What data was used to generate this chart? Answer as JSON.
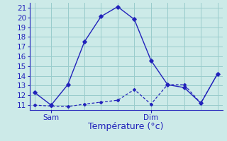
{
  "line1_x": [
    0,
    1,
    2,
    3,
    4,
    5,
    6,
    7,
    8,
    9,
    10,
    11
  ],
  "line1_y": [
    12.3,
    11.0,
    13.1,
    17.5,
    20.1,
    21.1,
    19.8,
    15.6,
    13.1,
    12.8,
    11.2,
    14.2
  ],
  "line2_x": [
    0,
    1,
    2,
    3,
    4,
    5,
    6,
    7,
    8,
    9,
    10,
    11
  ],
  "line2_y": [
    11.0,
    10.9,
    10.85,
    11.1,
    11.3,
    11.5,
    12.6,
    11.1,
    13.1,
    13.1,
    11.2,
    14.2
  ],
  "line_color": "#2222bb",
  "bg_color": "#cceae8",
  "grid_color": "#99cccc",
  "axis_color": "#2222bb",
  "xlabel": "Température (°c)",
  "xlabel_fontsize": 9,
  "yticks": [
    11,
    12,
    13,
    14,
    15,
    16,
    17,
    18,
    19,
    20,
    21
  ],
  "ylim": [
    10.5,
    21.5
  ],
  "xlim": [
    -0.3,
    11.3
  ],
  "sam_x": 1,
  "dim_x": 7,
  "tick_label_color": "#2222bb",
  "tick_fontsize": 7.5
}
